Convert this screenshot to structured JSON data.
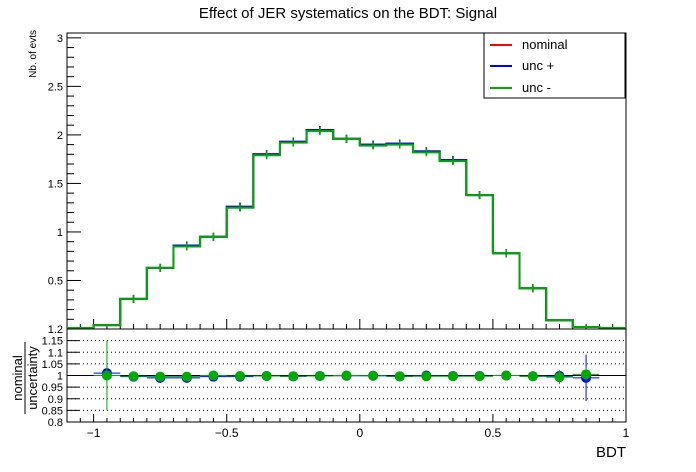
{
  "chart_data": [
    {
      "type": "line",
      "title": "Effect of JER systematics on the BDT: Signal",
      "ylabel": "Nb. of evts",
      "xlim": [
        -1.1,
        1.0
      ],
      "ylim": [
        0,
        3.05
      ],
      "yticks": [
        0.5,
        1,
        1.5,
        2,
        2.5,
        3
      ],
      "ytick_labels": [
        "0.5",
        "1",
        "1.5",
        "2",
        "2.5",
        "3"
      ],
      "bin_edges": [
        -1.1,
        -1.0,
        -0.9,
        -0.8,
        -0.7,
        -0.6,
        -0.5,
        -0.4,
        -0.3,
        -0.2,
        -0.1,
        0.0,
        0.1,
        0.2,
        0.3,
        0.4,
        0.5,
        0.6,
        0.7,
        0.8,
        0.9,
        1.0
      ],
      "series": [
        {
          "name": "nominal",
          "color": "#ff0000",
          "values": [
            0.01,
            0.04,
            0.31,
            0.63,
            0.86,
            0.95,
            1.26,
            1.8,
            1.93,
            2.05,
            1.96,
            1.9,
            1.91,
            1.83,
            1.74,
            1.38,
            0.78,
            0.42,
            0.09,
            0.02,
            0.01
          ]
        },
        {
          "name": "unc +",
          "color": "#0000ff",
          "values": [
            0.01,
            0.04,
            0.31,
            0.63,
            0.86,
            0.95,
            1.26,
            1.8,
            1.93,
            2.05,
            1.96,
            1.9,
            1.91,
            1.83,
            1.74,
            1.38,
            0.78,
            0.42,
            0.09,
            0.02,
            0.01
          ]
        },
        {
          "name": "unc -",
          "color": "#00aa00",
          "values": [
            0.01,
            0.04,
            0.31,
            0.63,
            0.85,
            0.95,
            1.25,
            1.79,
            1.92,
            2.04,
            1.96,
            1.89,
            1.9,
            1.82,
            1.73,
            1.38,
            0.78,
            0.42,
            0.09,
            0.02,
            0.01
          ]
        }
      ],
      "legend": {
        "position": "top-right",
        "entries": [
          "nominal",
          "unc +",
          "unc -"
        ]
      }
    },
    {
      "type": "scatter",
      "ylabel_num": "nominal",
      "ylabel_den": "uncertainty",
      "xlabel": "BDT",
      "xlim": [
        -1.1,
        1.0
      ],
      "ylim": [
        0.8,
        1.2
      ],
      "yticks": [
        0.8,
        0.85,
        0.9,
        0.95,
        1,
        1.05,
        1.1,
        1.15,
        1.2
      ],
      "ytick_labels": [
        "0.8",
        "0.85",
        "0.9",
        "0.95",
        "1",
        "1.05",
        "1.1",
        "1.15",
        "1.2"
      ],
      "xticks": [
        -1,
        -0.5,
        0,
        0.5,
        1
      ],
      "xtick_labels": [
        "−1",
        "−0.5",
        "0",
        "0.5",
        "1"
      ],
      "reference_line": 1.0,
      "x": [
        -0.95,
        -0.85,
        -0.75,
        -0.65,
        -0.55,
        -0.45,
        -0.35,
        -0.25,
        -0.15,
        -0.05,
        0.05,
        0.15,
        0.25,
        0.35,
        0.45,
        0.55,
        0.65,
        0.75,
        0.85
      ],
      "series": [
        {
          "name": "unc +",
          "color": "#0000ff",
          "values": [
            1.01,
            0.995,
            0.99,
            0.99,
            0.995,
            0.995,
            0.998,
            0.996,
            0.998,
            0.999,
            0.999,
            0.996,
            1.0,
            0.998,
            0.998,
            1.0,
            0.997,
            0.998,
            0.99
          ],
          "errors": [
            0.03,
            0.01,
            0.01,
            0.01,
            0.01,
            0.01,
            0.005,
            0.005,
            0.005,
            0.005,
            0.005,
            0.005,
            0.005,
            0.005,
            0.005,
            0.01,
            0.01,
            0.02,
            0.1
          ]
        },
        {
          "name": "unc -",
          "color": "#00aa00",
          "values": [
            1.0,
            0.997,
            0.995,
            0.995,
            1.0,
            0.998,
            0.998,
            0.997,
            0.998,
            1.0,
            0.999,
            0.997,
            0.997,
            0.997,
            0.997,
            1.0,
            0.997,
            0.993,
            1.005
          ],
          "errors": [
            0.15,
            0.02,
            0.012,
            0.01,
            0.01,
            0.01,
            0.005,
            0.005,
            0.005,
            0.005,
            0.005,
            0.005,
            0.005,
            0.005,
            0.005,
            0.01,
            0.01,
            0.03,
            0.03
          ]
        }
      ]
    }
  ]
}
